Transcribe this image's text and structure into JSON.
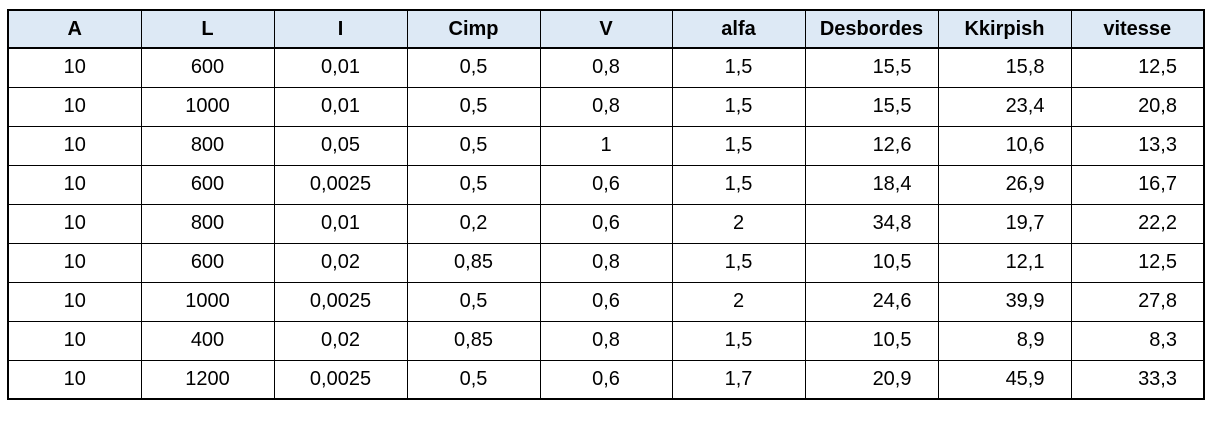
{
  "table": {
    "headers": [
      "A",
      "L",
      "I",
      "Cimp",
      "V",
      "alfa",
      "Desbordes",
      "Kkirpish",
      "vitesse"
    ],
    "rows": [
      [
        "10",
        "600",
        "0,01",
        "0,5",
        "0,8",
        "1,5",
        "15,5",
        "15,8",
        "12,5"
      ],
      [
        "10",
        "1000",
        "0,01",
        "0,5",
        "0,8",
        "1,5",
        "15,5",
        "23,4",
        "20,8"
      ],
      [
        "10",
        "800",
        "0,05",
        "0,5",
        "1",
        "1,5",
        "12,6",
        "10,6",
        "13,3"
      ],
      [
        "10",
        "600",
        "0,0025",
        "0,5",
        "0,6",
        "1,5",
        "18,4",
        "26,9",
        "16,7"
      ],
      [
        "10",
        "800",
        "0,01",
        "0,2",
        "0,6",
        "2",
        "34,8",
        "19,7",
        "22,2"
      ],
      [
        "10",
        "600",
        "0,02",
        "0,85",
        "0,8",
        "1,5",
        "10,5",
        "12,1",
        "12,5"
      ],
      [
        "10",
        "1000",
        "0,0025",
        "0,5",
        "0,6",
        "2",
        "24,6",
        "39,9",
        "27,8"
      ],
      [
        "10",
        "400",
        "0,02",
        "0,85",
        "0,8",
        "1,5",
        "10,5",
        "8,9",
        "8,3"
      ],
      [
        "10",
        "1200",
        "0,0025",
        "0,5",
        "0,6",
        "1,7",
        "20,9",
        "45,9",
        "33,3"
      ]
    ],
    "header_bg": "#dde9f5",
    "border_color": "#000000"
  }
}
